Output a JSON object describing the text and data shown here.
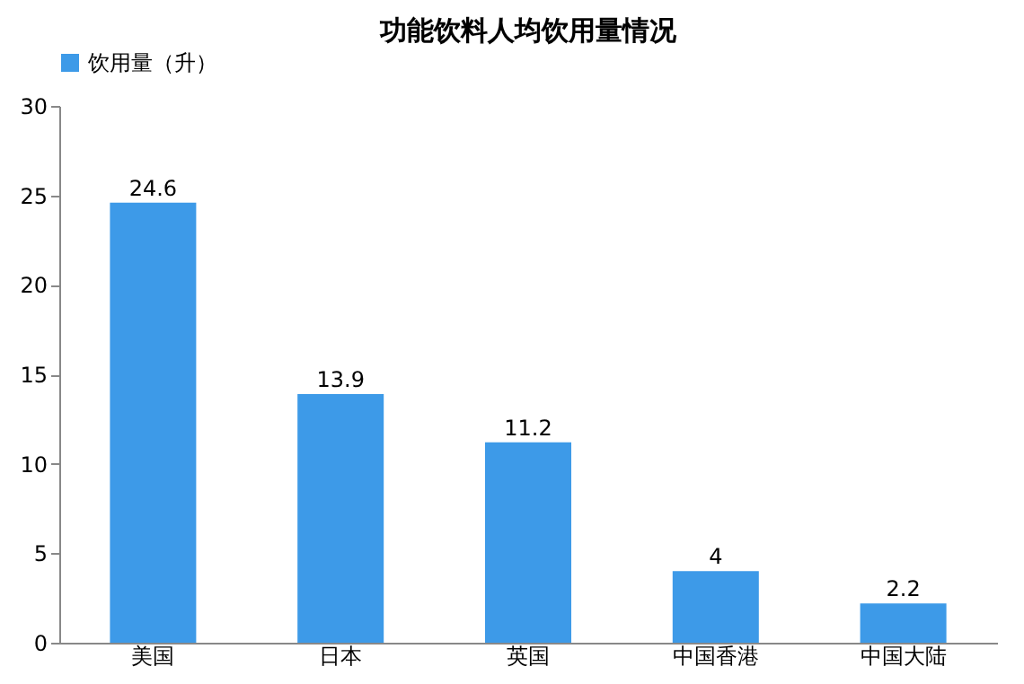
{
  "chart_data": {
    "type": "bar",
    "title": "功能饮料人均饮用量情况",
    "categories": [
      "美国",
      "日本",
      "英国",
      "中国香港",
      "中国大陆"
    ],
    "series": [
      {
        "name": "饮用量（升）",
        "color": "#3d9ae8",
        "values": [
          24.6,
          13.9,
          11.2,
          4,
          2.2
        ]
      }
    ],
    "ylim": [
      0,
      30
    ],
    "yticks": [
      0,
      5,
      10,
      15,
      20,
      25,
      30
    ],
    "grid": false,
    "legend": "top",
    "data_labels": true
  }
}
